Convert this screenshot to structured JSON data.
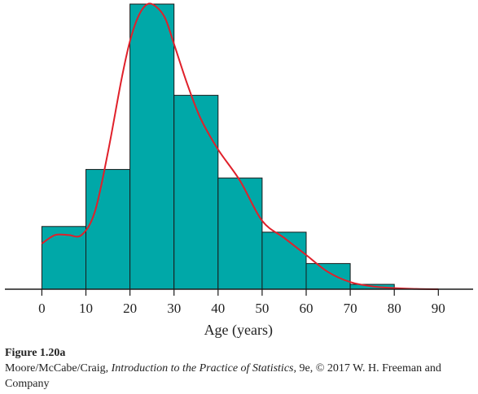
{
  "chart_data": {
    "type": "bar",
    "subtype": "histogram",
    "title": "",
    "xlabel": "Age (years)",
    "ylabel": "",
    "bins": [
      {
        "start": 0,
        "end": 10,
        "value": 0.22
      },
      {
        "start": 10,
        "end": 20,
        "value": 0.42
      },
      {
        "start": 20,
        "end": 30,
        "value": 1.0
      },
      {
        "start": 30,
        "end": 40,
        "value": 0.68
      },
      {
        "start": 40,
        "end": 50,
        "value": 0.39
      },
      {
        "start": 50,
        "end": 60,
        "value": 0.2
      },
      {
        "start": 60,
        "end": 70,
        "value": 0.09
      },
      {
        "start": 70,
        "end": 80,
        "value": 0.017
      }
    ],
    "density_curve": {
      "x": [
        0,
        3,
        6,
        9,
        12,
        15,
        18,
        20,
        22,
        24,
        26,
        28,
        30,
        33,
        36,
        40,
        45,
        50,
        55,
        60,
        65,
        70,
        75,
        80,
        85,
        90
      ],
      "y": [
        0.16,
        0.19,
        0.19,
        0.19,
        0.27,
        0.48,
        0.73,
        0.87,
        0.96,
        1.0,
        0.99,
        0.95,
        0.86,
        0.72,
        0.6,
        0.49,
        0.38,
        0.24,
        0.18,
        0.12,
        0.06,
        0.025,
        0.01,
        0.004,
        0.001,
        0.0
      ]
    },
    "xticks": [
      0,
      10,
      20,
      30,
      40,
      50,
      60,
      70,
      80,
      90
    ],
    "xlim": [
      -9.5,
      99
    ],
    "ylim": [
      0,
      1.0
    ],
    "grid": false,
    "legend": "none",
    "colors": {
      "bar_fill": "#00a8a8",
      "bar_stroke": "#1a1a1a",
      "curve": "#e0202a",
      "axis": "#1a1a1a"
    }
  },
  "caption": {
    "figure": "Figure 1.20a",
    "credit_before": "Moore/McCabe/Craig, ",
    "credit_title": "Introduction to the Practice of Statistics",
    "credit_after": ", 9e, © 2017 W. H. Freeman and Company"
  }
}
